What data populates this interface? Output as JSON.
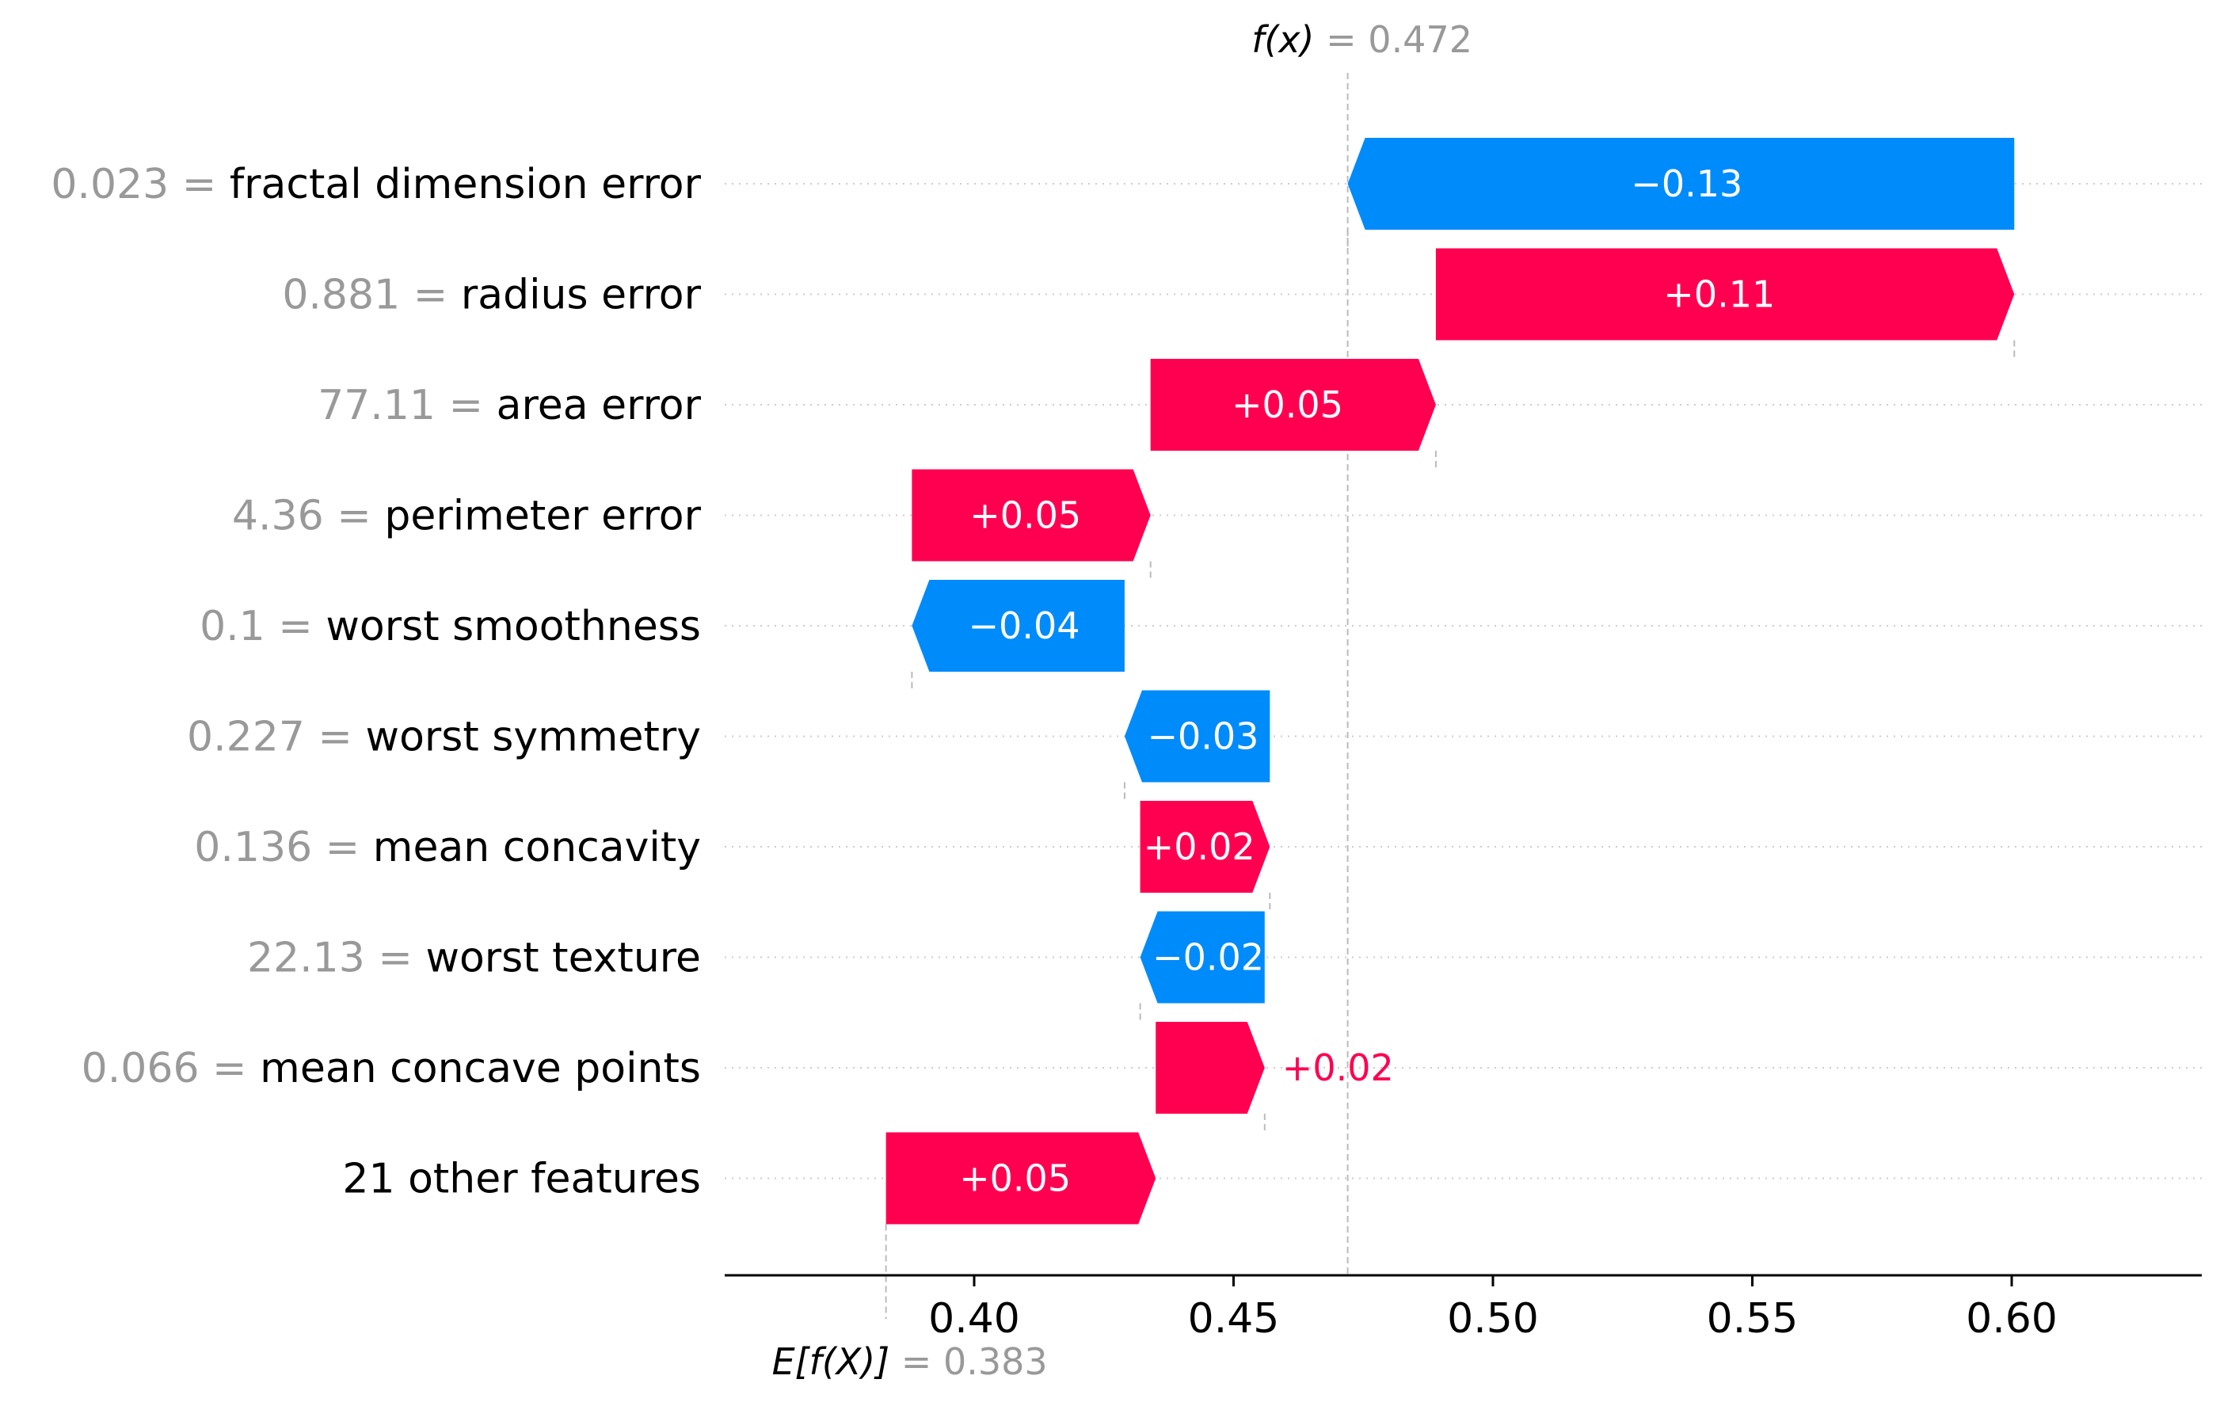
{
  "chart_data": {
    "type": "bar",
    "subtype": "waterfall",
    "fx": {
      "prefix": "f(x)",
      "value_text": "0.472",
      "value": 0.472
    },
    "efx": {
      "prefix": "E[f(X)]",
      "value_text": "0.383",
      "value": 0.383
    },
    "colors": {
      "positive": "#ff0051",
      "negative": "#008bfb",
      "muted_text": "#999999",
      "guide_line": "#bbbbbb",
      "row_dots": "#cccccc"
    },
    "xlim": [
      0.36,
      0.635
    ],
    "ticks": [
      {
        "value": 0.4,
        "label": "0.40"
      },
      {
        "value": 0.45,
        "label": "0.45"
      },
      {
        "value": 0.5,
        "label": "0.50"
      },
      {
        "value": 0.55,
        "label": "0.55"
      },
      {
        "value": 0.6,
        "label": "0.60"
      }
    ],
    "features": [
      {
        "value_text": "0.023",
        "name": "fractal dimension error",
        "start": 0.6005,
        "end": 0.472,
        "label": "−0.13",
        "label_outside": false
      },
      {
        "value_text": "0.881",
        "name": "radius error",
        "start": 0.489,
        "end": 0.6005,
        "label": "+0.11",
        "label_outside": false
      },
      {
        "value_text": "77.11",
        "name": "area error",
        "start": 0.434,
        "end": 0.489,
        "label": "+0.05",
        "label_outside": false
      },
      {
        "value_text": "4.36",
        "name": "perimeter error",
        "start": 0.388,
        "end": 0.434,
        "label": "+0.05",
        "label_outside": false
      },
      {
        "value_text": "0.1",
        "name": "worst smoothness",
        "start": 0.429,
        "end": 0.388,
        "label": "−0.04",
        "label_outside": false
      },
      {
        "value_text": "0.227",
        "name": "worst symmetry",
        "start": 0.457,
        "end": 0.429,
        "label": "−0.03",
        "label_outside": false
      },
      {
        "value_text": "0.136",
        "name": "mean concavity",
        "start": 0.432,
        "end": 0.457,
        "label": "+0.02",
        "label_outside": false
      },
      {
        "value_text": "22.13",
        "name": "worst texture",
        "start": 0.456,
        "end": 0.432,
        "label": "−0.02",
        "label_outside": false
      },
      {
        "value_text": "0.066",
        "name": "mean concave points",
        "start": 0.435,
        "end": 0.456,
        "label": "+0.02",
        "label_outside": true
      },
      {
        "value_text": "",
        "name": "21 other features",
        "start": 0.383,
        "end": 0.435,
        "label": "+0.05",
        "label_outside": false
      }
    ]
  }
}
